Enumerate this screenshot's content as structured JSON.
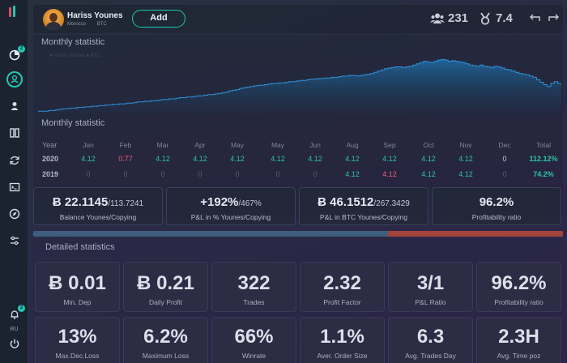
{
  "sidebar": {
    "language": "RU",
    "icons": [
      "pie-chart-icon",
      "profile-icon",
      "user-icon",
      "columns-icon",
      "refresh-icon",
      "terminal-icon",
      "compass-icon",
      "sliders-icon",
      "bell-icon",
      "power-icon"
    ],
    "badges": {
      "pie": "2",
      "bell": "2"
    }
  },
  "header": {
    "user_name": "Hariss Younes",
    "country": "Morocco",
    "currency": "BTC",
    "add_label": "Add",
    "followers": "231",
    "rating": "7.4"
  },
  "chart": {
    "title": "Monthly statistic",
    "legend": "● Hariss Younes   ● BTC",
    "series": [
      0.05,
      0.05,
      0.05,
      0.06,
      0.06,
      0.07,
      0.08,
      0.09,
      0.09,
      0.1,
      0.1,
      0.11,
      0.11,
      0.12,
      0.12,
      0.13,
      0.13,
      0.14,
      0.14,
      0.15,
      0.15,
      0.16,
      0.16,
      0.17,
      0.17,
      0.18,
      0.18,
      0.19,
      0.2,
      0.2,
      0.21,
      0.21,
      0.22,
      0.22,
      0.23,
      0.24,
      0.24,
      0.25,
      0.25,
      0.26,
      0.27,
      0.27,
      0.28,
      0.28,
      0.29,
      0.3,
      0.3,
      0.31,
      0.32,
      0.32,
      0.33,
      0.34,
      0.35,
      0.36,
      0.38,
      0.39,
      0.4,
      0.42,
      0.43,
      0.44,
      0.45,
      0.46,
      0.47,
      0.47,
      0.48,
      0.49,
      0.5,
      0.5,
      0.51,
      0.51,
      0.52,
      0.53,
      0.53,
      0.54,
      0.55,
      0.55,
      0.56,
      0.57,
      0.57,
      0.58,
      0.58,
      0.59,
      0.59,
      0.6,
      0.6,
      0.61,
      0.62,
      0.62,
      0.63,
      0.63,
      0.62,
      0.63,
      0.64,
      0.65,
      0.66,
      0.68,
      0.7,
      0.72,
      0.74,
      0.75,
      0.76,
      0.77,
      0.77,
      0.76,
      0.77,
      0.78,
      0.8,
      0.82,
      0.84,
      0.86,
      0.85,
      0.84,
      0.86,
      0.88,
      0.89,
      0.88,
      0.86,
      0.87,
      0.86,
      0.85,
      0.84,
      0.82,
      0.8,
      0.79,
      0.78,
      0.8,
      0.78,
      0.77,
      0.76,
      0.78,
      0.77,
      0.75,
      0.73,
      0.72,
      0.7,
      0.68,
      0.66,
      0.65,
      0.64,
      0.62,
      0.6,
      0.56,
      0.52,
      0.48,
      0.45,
      0.5,
      0.53,
      0.5
    ]
  },
  "monthly": {
    "title": "Monthly statistic",
    "header": [
      "Year",
      "Jan",
      "Feb",
      "Mar",
      "Apr",
      "May",
      "May",
      "Jun",
      "Aug",
      "Sep",
      "Oct",
      "Nov",
      "Dec",
      "Total"
    ],
    "rows": [
      {
        "year": "2020",
        "values": [
          "4.12",
          "0.77",
          "4.12",
          "4.12",
          "4.12",
          "4.12",
          "4.12",
          "4.12",
          "4.12",
          "4.12",
          "4.12",
          "0",
          "112.12%"
        ]
      },
      {
        "year": "2019",
        "values": [
          "0",
          "0",
          "0",
          "0",
          "0",
          "0",
          "0",
          "4.12",
          "4.12",
          "4.12",
          "4.12",
          "0",
          "74.2%"
        ]
      }
    ],
    "colors": {
      "pos": "#2ec4a4",
      "neg": "#e0607a",
      "zero": "#7e879b",
      "muted": "#556072"
    }
  },
  "summary": [
    {
      "big": "Ƀ 22.1145",
      "small": "/113.7241",
      "label": "Balance Younes/Copying"
    },
    {
      "big": "+192%",
      "small": "/467%",
      "label": "P&L in % Younes/Copying"
    },
    {
      "big": "Ƀ 46.1512",
      "small": "/267.3429",
      "label": "P&L in BTC Younes/Copying"
    },
    {
      "big": "96.2%",
      "small": "",
      "label": "Profitability ratio"
    }
  ],
  "progress": {
    "primary_fraction": 0.67,
    "secondary_fraction": 0.33
  },
  "detailed": {
    "title": "Detailed statistics",
    "cards": [
      {
        "value": "Ƀ 0.01",
        "label": "Min. Dep"
      },
      {
        "value": "Ƀ 0.21",
        "label": "Daily Profit"
      },
      {
        "value": "322",
        "label": "Trades"
      },
      {
        "value": "2.32",
        "label": "Profit Factor"
      },
      {
        "value": "3/1",
        "label": "P&L Ratio"
      },
      {
        "value": "96.2%",
        "label": "Profitability ratio"
      },
      {
        "value": "13%",
        "label": "Max.Dec.Loss"
      },
      {
        "value": "6.2%",
        "label": "Maximum Loss"
      },
      {
        "value": "66%",
        "label": "Winrate"
      },
      {
        "value": "1.1%",
        "label": "Aver. Order Size"
      },
      {
        "value": "6.3",
        "label": "Avg. Trades Day"
      },
      {
        "value": "2.3H",
        "label": "Avg. Time poz"
      }
    ]
  }
}
